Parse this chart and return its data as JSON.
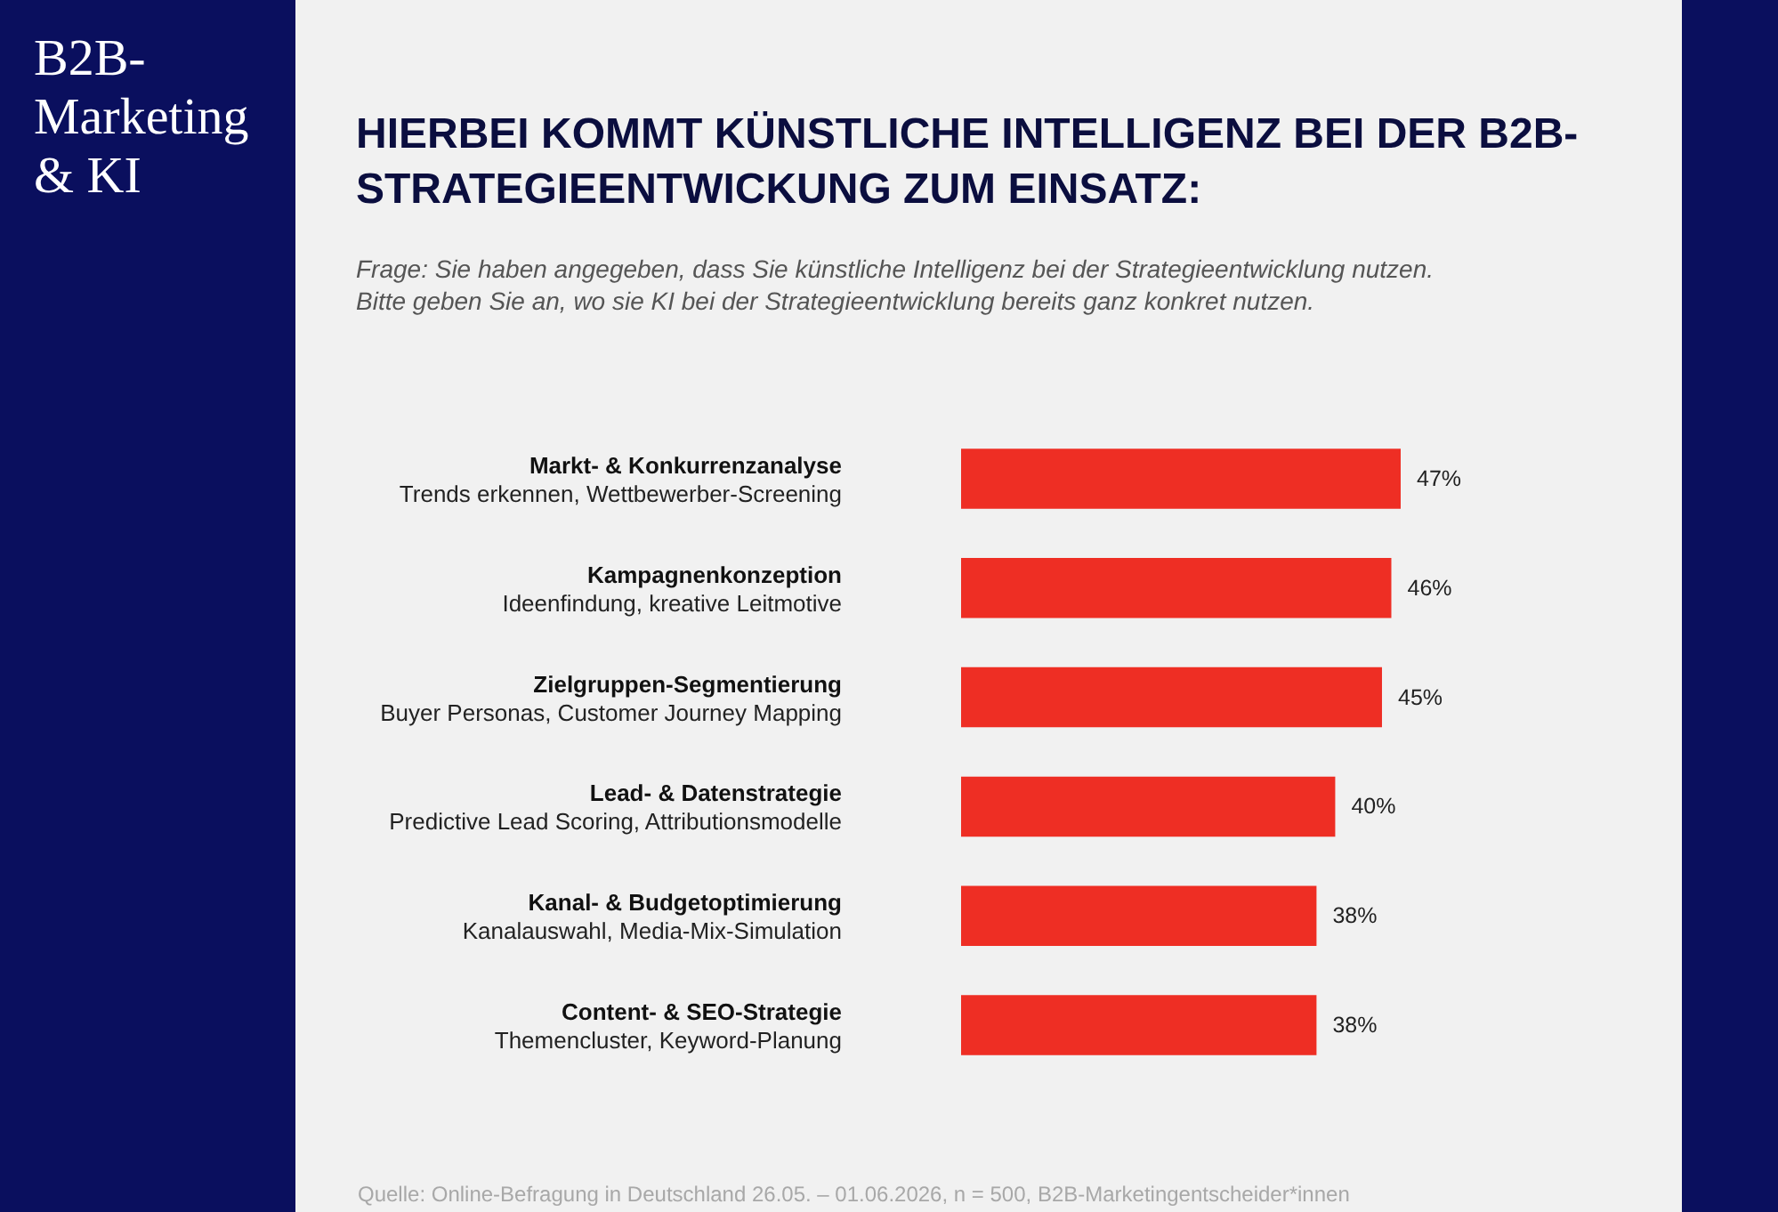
{
  "chart_data": {
    "type": "bar",
    "orientation": "horizontal",
    "title": "HIERBEI KOMMT KÜNSTLICHE INTELLIGENZ BEI DER B2B-STRATEGIEENTWICKUNG ZUM EINSATZ:",
    "subtitle": "Frage: Sie haben angegeben, dass Sie künstliche Intelligenz bei der Strategieentwicklung nutzen. Bitte geben Sie an, wo sie KI bei der Strategieentwicklung bereits ganz konkret nutzen.",
    "categories": [
      "Markt- & Konkurrenzanalyse\nTrends erkennen, Wettbewerber-Screening",
      "Kampagnenkonzeption\nIdeenfindung, kreative Leitmotive",
      "Zielgruppen-Segmentierung\nBuyer Personas, Customer Journey Mapping",
      "Lead- & Datenstrategie\nPredictive Lead Scoring, Attributionsmodelle",
      "Kanal- & Budgetoptimierung\nKanalauswahl, Media-Mix-Simulation",
      "Content- & SEO-Strategie\nThemencluster, Keyword-Planung"
    ],
    "values": [
      47,
      46,
      45,
      40,
      38,
      38
    ],
    "value_labels": [
      "47%",
      "46%",
      "45%",
      "40%",
      "38%",
      "38%"
    ],
    "color": "#ee2e24",
    "annotations": [
      "B2B-Marketing & KI",
      "Quelle: Online-Befragung in Deutschland 26.05. – 01.06.2026, n = 500, B2B-Marketingentscheider*innen"
    ]
  }
}
